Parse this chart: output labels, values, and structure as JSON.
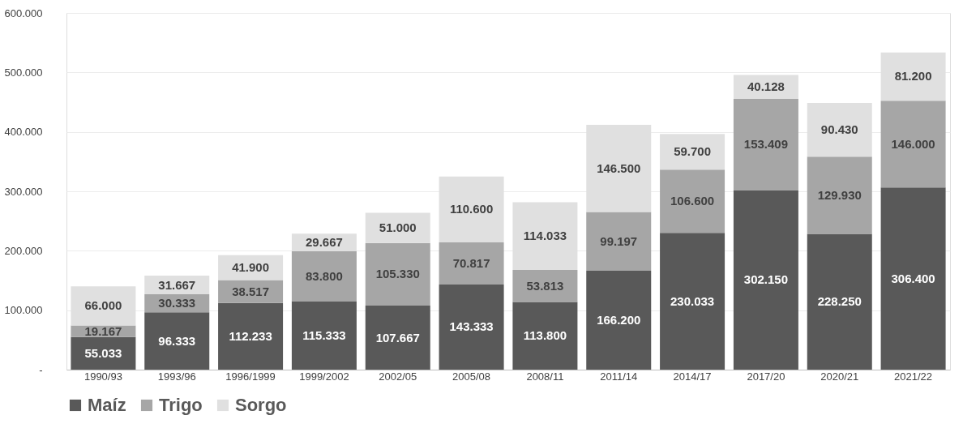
{
  "chart_data": {
    "type": "bar",
    "stacked": true,
    "categories": [
      "1990/93",
      "1993/96",
      "1996/1999",
      "1999/2002",
      "2002/05",
      "2005/08",
      "2008/11",
      "2011/14",
      "2014/17",
      "2017/20",
      "2020/21",
      "2021/22"
    ],
    "series": [
      {
        "name": "Maíz",
        "color": "#595959",
        "values": [
          55033,
          96333,
          112233,
          115333,
          107667,
          143333,
          113800,
          166200,
          230033,
          302150,
          228250,
          306400
        ],
        "value_labels": [
          "55.033",
          "96.333",
          "112.233",
          "115.333",
          "107.667",
          "143.333",
          "113.800",
          "166.200",
          "230.033",
          "302.150",
          "228.250",
          "306.400"
        ]
      },
      {
        "name": "Trigo",
        "color": "#a6a6a6",
        "values": [
          19167,
          30333,
          38517,
          83800,
          105330,
          70817,
          53813,
          99197,
          106600,
          153409,
          129930,
          146000
        ],
        "value_labels": [
          "19.167",
          "30.333",
          "38.517",
          "83.800",
          "105.330",
          "70.817",
          "53.813",
          "99.197",
          "106.600",
          "153.409",
          "129.930",
          "146.000"
        ]
      },
      {
        "name": "Sorgo",
        "color": "#e0e0e0",
        "values": [
          66000,
          31667,
          41900,
          29667,
          51000,
          110600,
          114033,
          146500,
          59700,
          40128,
          90430,
          81200
        ],
        "value_labels": [
          "66.000",
          "31.667",
          "41.900",
          "29.667",
          "51.000",
          "110.600",
          "114.033",
          "146.500",
          "59.700",
          "40.128",
          "90.430",
          "81.200"
        ]
      }
    ],
    "ylim": [
      0,
      600000
    ],
    "yticks": [
      {
        "value": 0,
        "label": "-"
      },
      {
        "value": 100000,
        "label": "100.000"
      },
      {
        "value": 200000,
        "label": "200.000"
      },
      {
        "value": 300000,
        "label": "300.000"
      },
      {
        "value": 400000,
        "label": "400.000"
      },
      {
        "value": 500000,
        "label": "500.000"
      },
      {
        "value": 600000,
        "label": "600.000"
      }
    ],
    "grid": "y",
    "legend": "bottom"
  }
}
